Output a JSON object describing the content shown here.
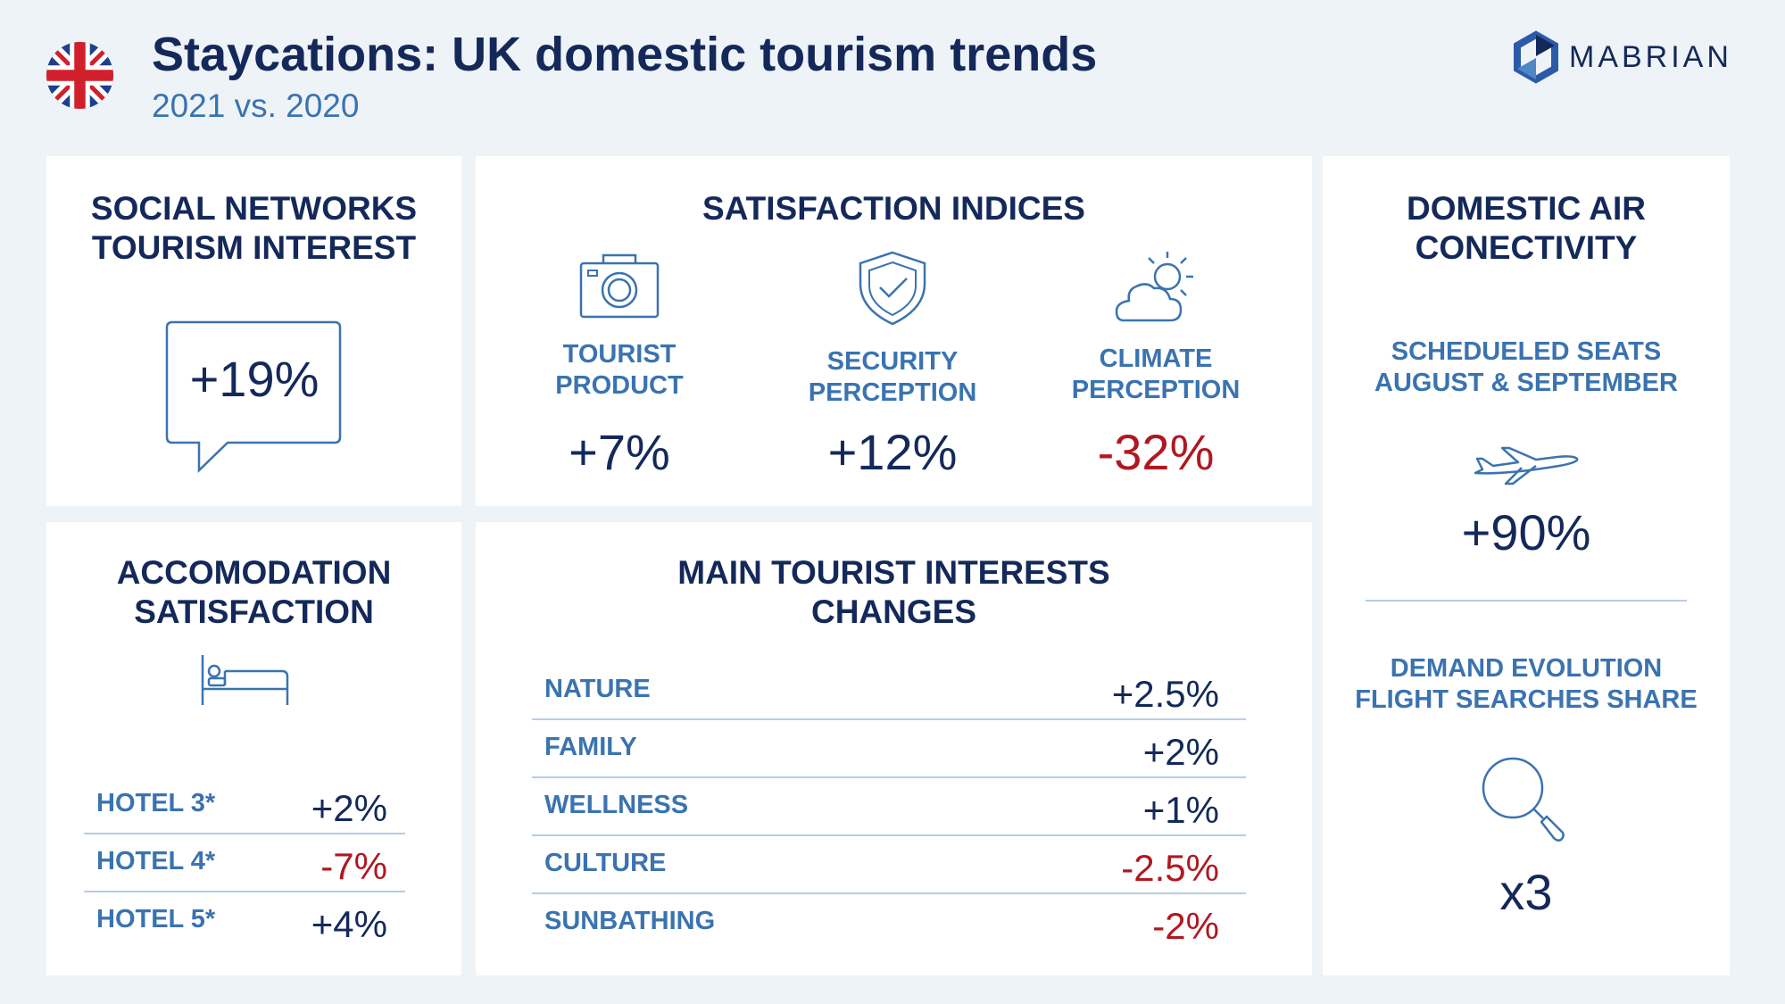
{
  "header": {
    "title": "Staycations: UK domestic tourism trends",
    "subtitle": "2021 vs. 2020",
    "brand": "MABRIAN",
    "flag_icon": "uk-flag-icon"
  },
  "colors": {
    "navy": "#14295a",
    "blue": "#3a73b0",
    "red": "#b01820",
    "background": "#eef3f8"
  },
  "social": {
    "title_line1": "SOCIAL NETWORKS",
    "title_line2": "TOURISM INTEREST",
    "value": "+19%",
    "icon": "speech-bubble-icon"
  },
  "satisfaction": {
    "title": "SATISFACTION INDICES",
    "items": [
      {
        "label_line1": "TOURIST",
        "label_line2": "PRODUCT",
        "value": "+7%",
        "icon": "camera-icon"
      },
      {
        "label_line1": "SECURITY",
        "label_line2": "PERCEPTION",
        "value": "+12%",
        "icon": "shield-check-icon"
      },
      {
        "label_line1": "CLIMATE",
        "label_line2": "PERCEPTION",
        "value": "-32%",
        "icon": "sun-cloud-icon"
      }
    ]
  },
  "air": {
    "title_line1": "DOMESTIC AIR",
    "title_line2": "CONECTIVITY",
    "seats_line1": "SCHEDUELED SEATS",
    "seats_line2": "AUGUST & SEPTEMBER",
    "seats_value": "+90%",
    "demand_line1": "DEMAND EVOLUTION",
    "demand_line2": "FLIGHT SEARCHES SHARE",
    "demand_value": "x3",
    "plane_icon": "airplane-icon",
    "search_icon": "magnifier-icon"
  },
  "accommodation": {
    "title_line1": "ACCOMODATION",
    "title_line2": "SATISFACTION",
    "icon": "bed-icon",
    "rows": [
      {
        "label": "HOTEL 3*",
        "value": "+2%"
      },
      {
        "label": "HOTEL 4*",
        "value": "-7%"
      },
      {
        "label": "HOTEL 5*",
        "value": "+4%"
      }
    ]
  },
  "interests": {
    "title_line1": "MAIN TOURIST INTERESTS",
    "title_line2": "CHANGES",
    "rows": [
      {
        "label": "NATURE",
        "value": "+2.5%"
      },
      {
        "label": "FAMILY",
        "value": "+2%"
      },
      {
        "label": "WELLNESS",
        "value": "+1%"
      },
      {
        "label": "CULTURE",
        "value": "-2.5%"
      },
      {
        "label": "SUNBATHING",
        "value": "-2%"
      }
    ]
  }
}
